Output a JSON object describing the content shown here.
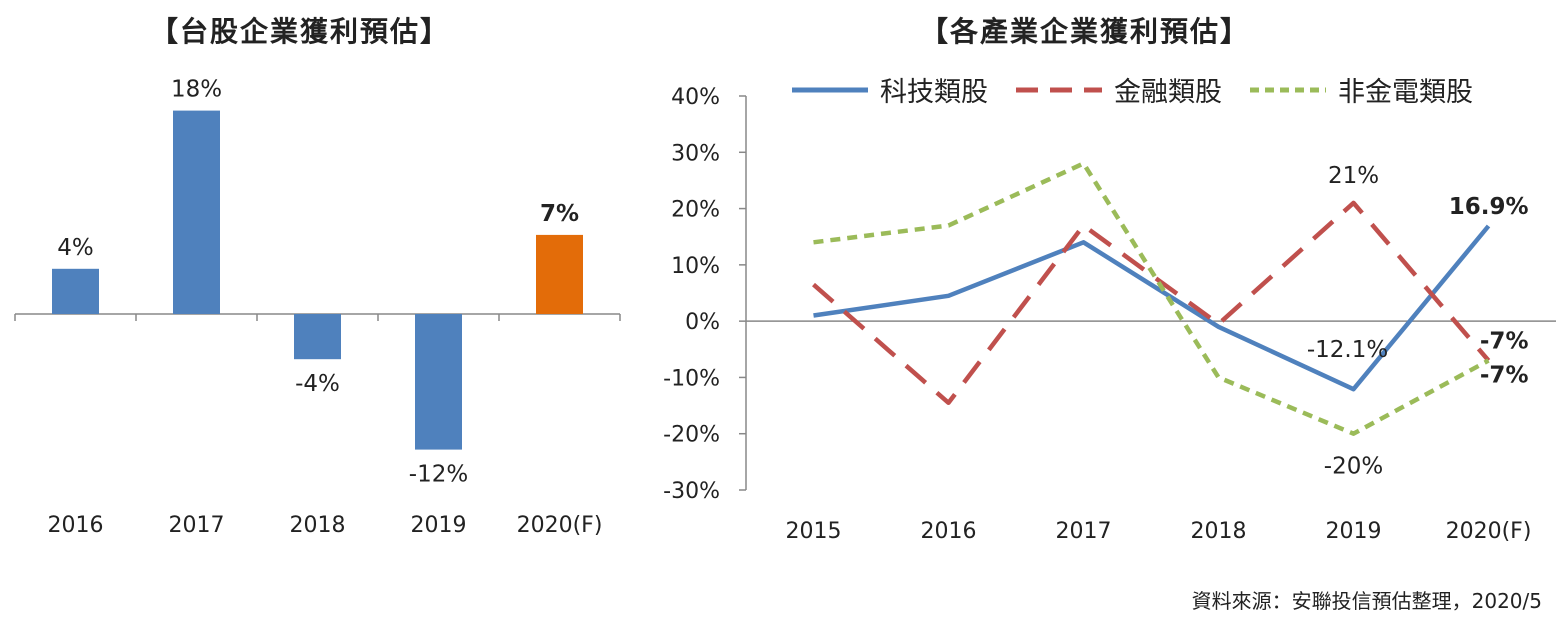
{
  "left_title": "【台股企業獲利預估】",
  "right_title": "【各產業企業獲利預估】",
  "source": "資料來源：安聯投信預估整理，2020/5",
  "chart_data": [
    {
      "type": "bar",
      "title": "【台股企業獲利預估】",
      "categories": [
        "2016",
        "2017",
        "2018",
        "2019",
        "2020(F)"
      ],
      "values": [
        4,
        18,
        -4,
        -12,
        7
      ],
      "value_labels": [
        "4%",
        "18%",
        "-4%",
        "-12%",
        "7%"
      ],
      "colors": [
        "#4f81bd",
        "#4f81bd",
        "#4f81bd",
        "#4f81bd",
        "#e36c09"
      ],
      "ylim": [
        -16,
        20
      ],
      "grid": false
    },
    {
      "type": "line",
      "title": "【各產業企業獲利預估】",
      "categories": [
        "2015",
        "2016",
        "2017",
        "2018",
        "2019",
        "2020(F)"
      ],
      "ylim": [
        -30,
        40
      ],
      "yticks": [
        40,
        30,
        20,
        10,
        0,
        -10,
        -20,
        -30
      ],
      "ytick_labels": [
        "40%",
        "30%",
        "20%",
        "10%",
        "0%",
        "-10%",
        "-20%",
        "-30%"
      ],
      "legend_position": "top",
      "grid": false,
      "series": [
        {
          "name": "科技類股",
          "color": "#4f81bd",
          "dash": "solid",
          "values": [
            1,
            4.5,
            14,
            -1,
            -12.1,
            16.9
          ]
        },
        {
          "name": "金融類股",
          "color": "#c0504d",
          "dash": "long-dash",
          "values": [
            6.5,
            -14.5,
            17,
            -0.5,
            21,
            -7
          ]
        },
        {
          "name": "非金電類股",
          "color": "#9bbb59",
          "dash": "short-dash",
          "values": [
            14,
            17,
            28,
            -10,
            -20,
            -7
          ]
        }
      ],
      "annotations": [
        {
          "text": "21%",
          "x": "2019",
          "y": 21
        },
        {
          "text": "16.9%",
          "x": "2020(F)",
          "y": 16.9
        },
        {
          "text": "-12.1%",
          "x": "2019",
          "y": -12.1
        },
        {
          "text": "-7%",
          "x": "2020(F)",
          "y": -7
        },
        {
          "text": "-7%",
          "x": "2020(F)",
          "y": -7
        },
        {
          "text": "-20%",
          "x": "2019",
          "y": -20
        }
      ]
    }
  ]
}
